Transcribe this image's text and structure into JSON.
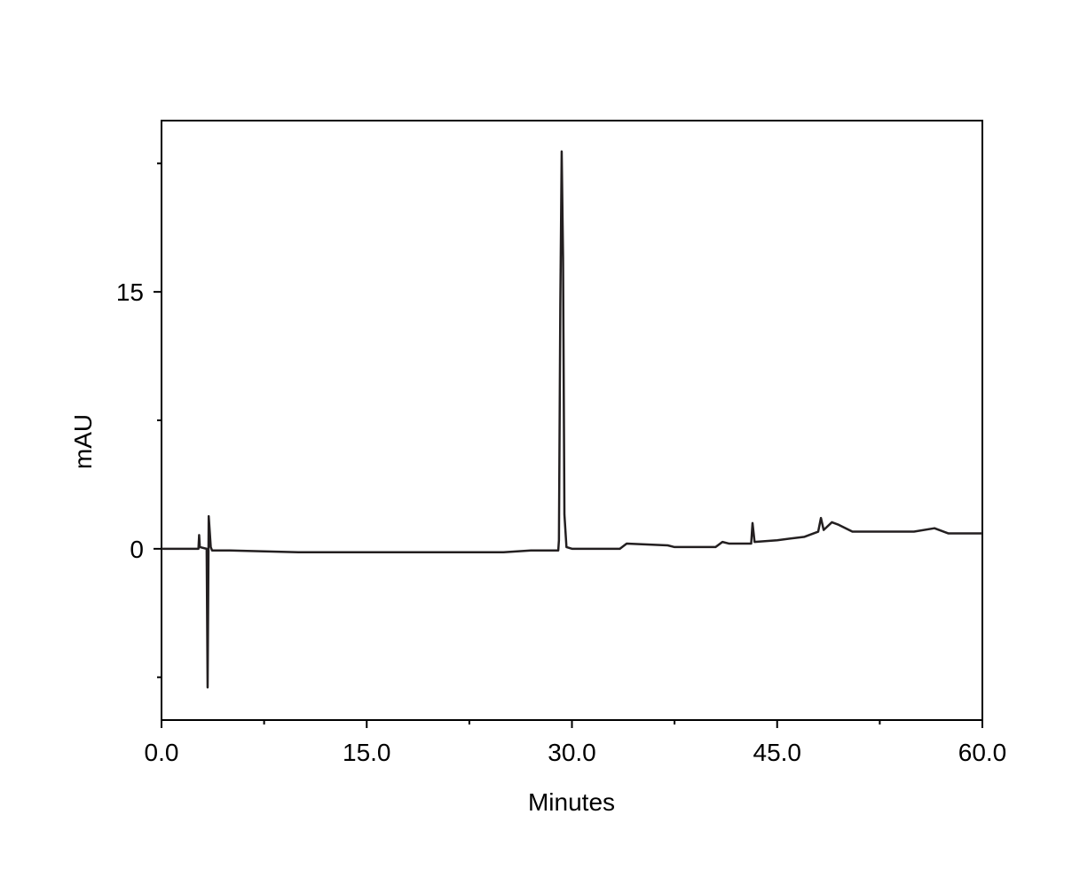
{
  "chart_data": {
    "type": "line",
    "x_label": "Minutes",
    "y_label": "mAU",
    "x": [
      0,
      2.5,
      2.7,
      2.75,
      2.8,
      3.3,
      3.37,
      3.45,
      3.5,
      3.6,
      3.7,
      4.5,
      5,
      7.5,
      10,
      25,
      27,
      29.0,
      29.05,
      29.15,
      29.25,
      29.35,
      29.45,
      29.6,
      30,
      33.5,
      34,
      37,
      37.5,
      40.5,
      41,
      41.5,
      43.1,
      43.2,
      43.35,
      45,
      47,
      48.0,
      48.2,
      48.4,
      49.0,
      49.5,
      50.5,
      52,
      55,
      56.5,
      57.5,
      60
    ],
    "values": [
      0,
      0,
      0,
      0.8,
      0.1,
      0,
      -8.1,
      1.9,
      1.3,
      0.1,
      -0.1,
      -0.1,
      -0.1,
      -0.15,
      -0.2,
      -0.2,
      -0.1,
      -0.1,
      0.5,
      14.2,
      23.2,
      17,
      2,
      0.1,
      0,
      0,
      0.3,
      0.2,
      0.1,
      0.1,
      0.4,
      0.3,
      0.3,
      1.5,
      0.4,
      0.5,
      0.7,
      1.0,
      1.8,
      1.1,
      1.55,
      1.4,
      1.0,
      1.0,
      1.0,
      1.2,
      0.9,
      0.9
    ],
    "color": "#231f20",
    "xlim": [
      0,
      60
    ],
    "xticks": [
      {
        "value": 0,
        "label": "0.0"
      },
      {
        "value": 15,
        "label": "15.0"
      },
      {
        "value": 30,
        "label": "30.0"
      },
      {
        "value": 45,
        "label": "45.0"
      },
      {
        "value": 60,
        "label": "60.0"
      }
    ],
    "xminorticks": [
      7.5,
      22.5,
      37.5,
      52.5
    ],
    "ylim": [
      -10,
      25
    ],
    "yticks": [
      0,
      15
    ],
    "yminorticks": [
      -7.5,
      7.5,
      22.5
    ],
    "grid": false
  }
}
